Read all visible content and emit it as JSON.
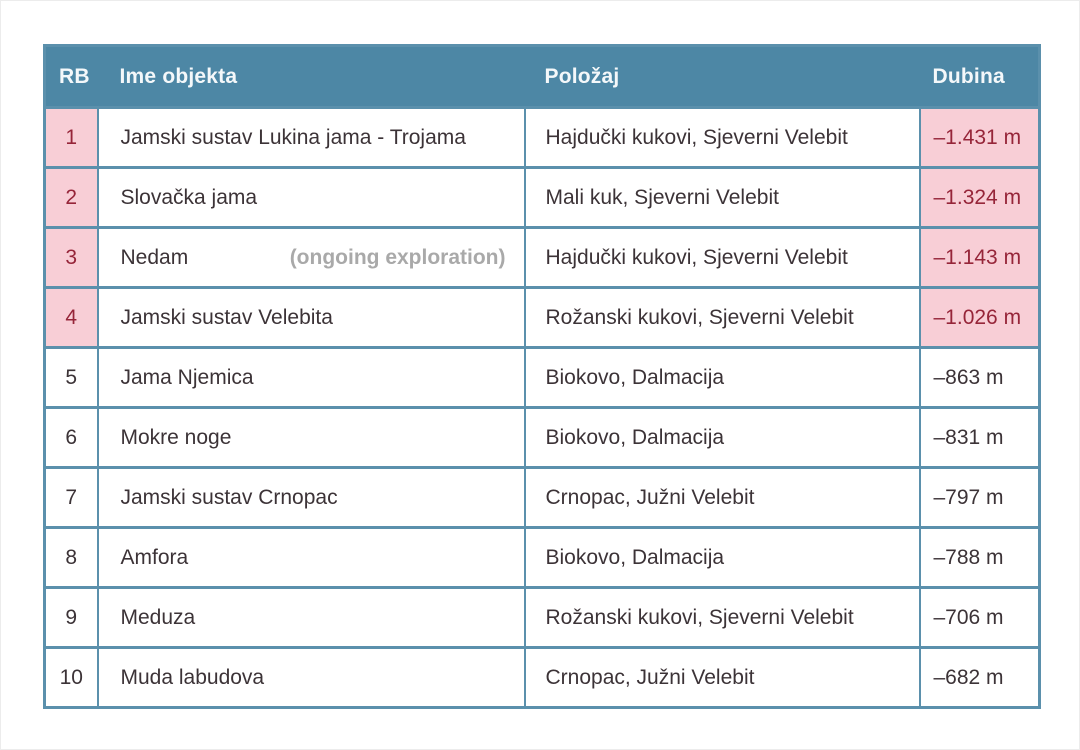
{
  "title": "Deepest caves table (Croatia)",
  "colors": {
    "header_bg": "#4d87a5",
    "header_text": "#f4f8fa",
    "grid": "#5b90ac",
    "highlight_bg": "#f8ced6",
    "highlight_text": "#962539",
    "body_text": "#3c3337",
    "note_text": "#a9a9a9"
  },
  "table": {
    "headers": {
      "rb": "RB",
      "name": "Ime objekta",
      "location": "Položaj",
      "depth": "Dubina"
    },
    "rows": [
      {
        "rb": "1",
        "name": "Jamski sustav Lukina jama - Trojama",
        "note": "",
        "location": "Hajdučki kukovi,  Sjeverni Velebit",
        "depth": "–1.431 m",
        "highlight": true
      },
      {
        "rb": "2",
        "name": "Slovačka jama",
        "note": "",
        "location": "Mali kuk, Sjeverni  Velebit",
        "depth": "–1.324 m",
        "highlight": true
      },
      {
        "rb": "3",
        "name": "Nedam",
        "note": "(ongoing exploration)",
        "location": "Hajdučki kukovi,  Sjeverni Velebit",
        "depth": "–1.143 m",
        "highlight": true
      },
      {
        "rb": "4",
        "name": "Jamski sustav Velebita",
        "note": "",
        "location": "Rožanski kukovi, Sjeverni Velebit",
        "depth": "–1.026 m",
        "highlight": true
      },
      {
        "rb": "5",
        "name": "Jama Njemica",
        "note": "",
        "location": "Biokovo, Dalmacija",
        "depth": "–863 m",
        "highlight": false
      },
      {
        "rb": "6",
        "name": "Mokre noge",
        "note": "",
        "location": "Biokovo, Dalmacija",
        "depth": "–831 m",
        "highlight": false
      },
      {
        "rb": "7",
        "name": "Jamski sustav Crnopac",
        "note": "",
        "location": "Crnopac, Južni Velebit",
        "depth": "–797 m",
        "highlight": false
      },
      {
        "rb": "8",
        "name": "Amfora",
        "note": "",
        "location": "Biokovo, Dalmacija",
        "depth": "–788 m",
        "highlight": false
      },
      {
        "rb": "9",
        "name": "Meduza",
        "note": "",
        "location": "Rožanski kukovi, Sjeverni Velebit",
        "depth": "–706 m",
        "highlight": false
      },
      {
        "rb": "10",
        "name": "Muda labudova",
        "note": "",
        "location": "Crnopac, Južni Velebit",
        "depth": "–682 m",
        "highlight": false
      }
    ]
  },
  "chart_data": {
    "type": "table",
    "title": "Deepest caves of Croatia (top 10 by depth)",
    "columns": [
      "RB",
      "Ime objekta",
      "Položaj",
      "Dubina"
    ],
    "rows": [
      [
        1,
        "Jamski sustav Lukina jama - Trojama",
        "Hajdučki kukovi, Sjeverni Velebit",
        "–1.431 m"
      ],
      [
        2,
        "Slovačka jama",
        "Mali kuk, Sjeverni Velebit",
        "–1.324 m"
      ],
      [
        3,
        "Nedam (ongoing exploration)",
        "Hajdučki kukovi, Sjeverni Velebit",
        "–1.143 m"
      ],
      [
        4,
        "Jamski sustav Velebita",
        "Rožanski kukovi, Sjeverni Velebit",
        "–1.026 m"
      ],
      [
        5,
        "Jama Njemica",
        "Biokovo, Dalmacija",
        "–863 m"
      ],
      [
        6,
        "Mokre noge",
        "Biokovo, Dalmacija",
        "–831 m"
      ],
      [
        7,
        "Jamski sustav Crnopac",
        "Crnopac, Južni Velebit",
        "–797 m"
      ],
      [
        8,
        "Amfora",
        "Biokovo, Dalmacija",
        "–788 m"
      ],
      [
        9,
        "Meduza",
        "Rožanski kukovi, Sjeverni Velebit",
        "–706 m"
      ],
      [
        10,
        "Muda labudova",
        "Crnopac, Južni Velebit",
        "–682 m"
      ]
    ],
    "depth_values_m": [
      -1431,
      -1324,
      -1143,
      -1026,
      -863,
      -831,
      -797,
      -788,
      -706,
      -682
    ],
    "highlighted_rows": [
      1,
      2,
      3,
      4
    ],
    "highlight_meaning": "caves deeper than 1000 m (pink rank and depth cells)"
  }
}
